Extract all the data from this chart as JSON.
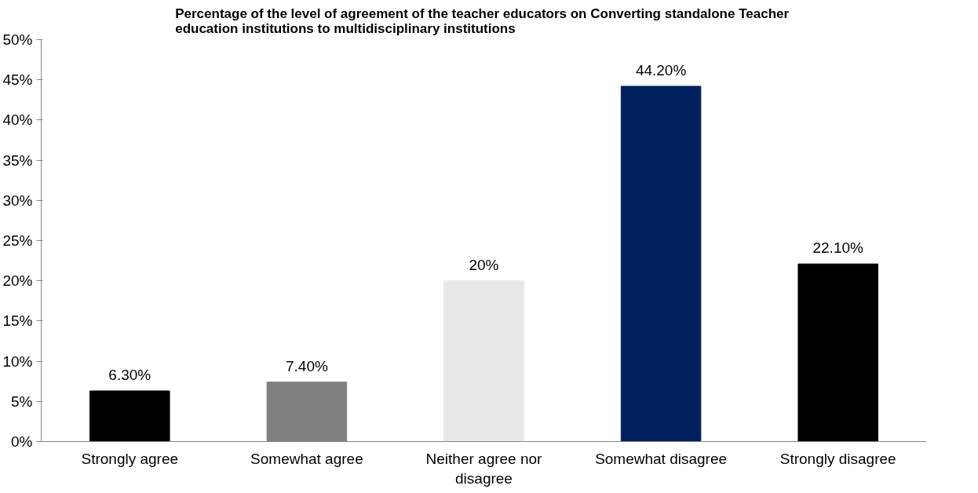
{
  "chart_data": {
    "type": "bar",
    "title": "Percentage of the level of agreement  of the teacher educators on Converting standalone Teacher education institutions to multidisciplinary institutions",
    "categories": [
      "Strongly agree",
      "Somewhat agree",
      "Neither agree nor disagree",
      "Somewhat disagree",
      "Strongly disagree"
    ],
    "values": [
      6.3,
      7.4,
      20,
      44.2,
      22.1
    ],
    "colors": [
      "#000000",
      "#808080",
      "#e8e8e8",
      "#002060",
      "#000000"
    ],
    "value_labels": [
      "6.30%",
      "7.40%",
      "20%",
      "44.20%",
      "22.10%"
    ],
    "ylim": [
      0,
      50
    ],
    "yticks": [
      {
        "value": 0,
        "label": "0%"
      },
      {
        "value": 5,
        "label": "5%"
      },
      {
        "value": 10,
        "label": "10%"
      },
      {
        "value": 15,
        "label": "15%"
      },
      {
        "value": 20,
        "label": "20%"
      },
      {
        "value": 25,
        "label": "25%"
      },
      {
        "value": 30,
        "label": "30%"
      },
      {
        "value": 35,
        "label": "35%"
      },
      {
        "value": 40,
        "label": "40%"
      },
      {
        "value": 45,
        "label": "45%"
      },
      {
        "value": 50,
        "label": "50%"
      }
    ],
    "grid": false
  }
}
